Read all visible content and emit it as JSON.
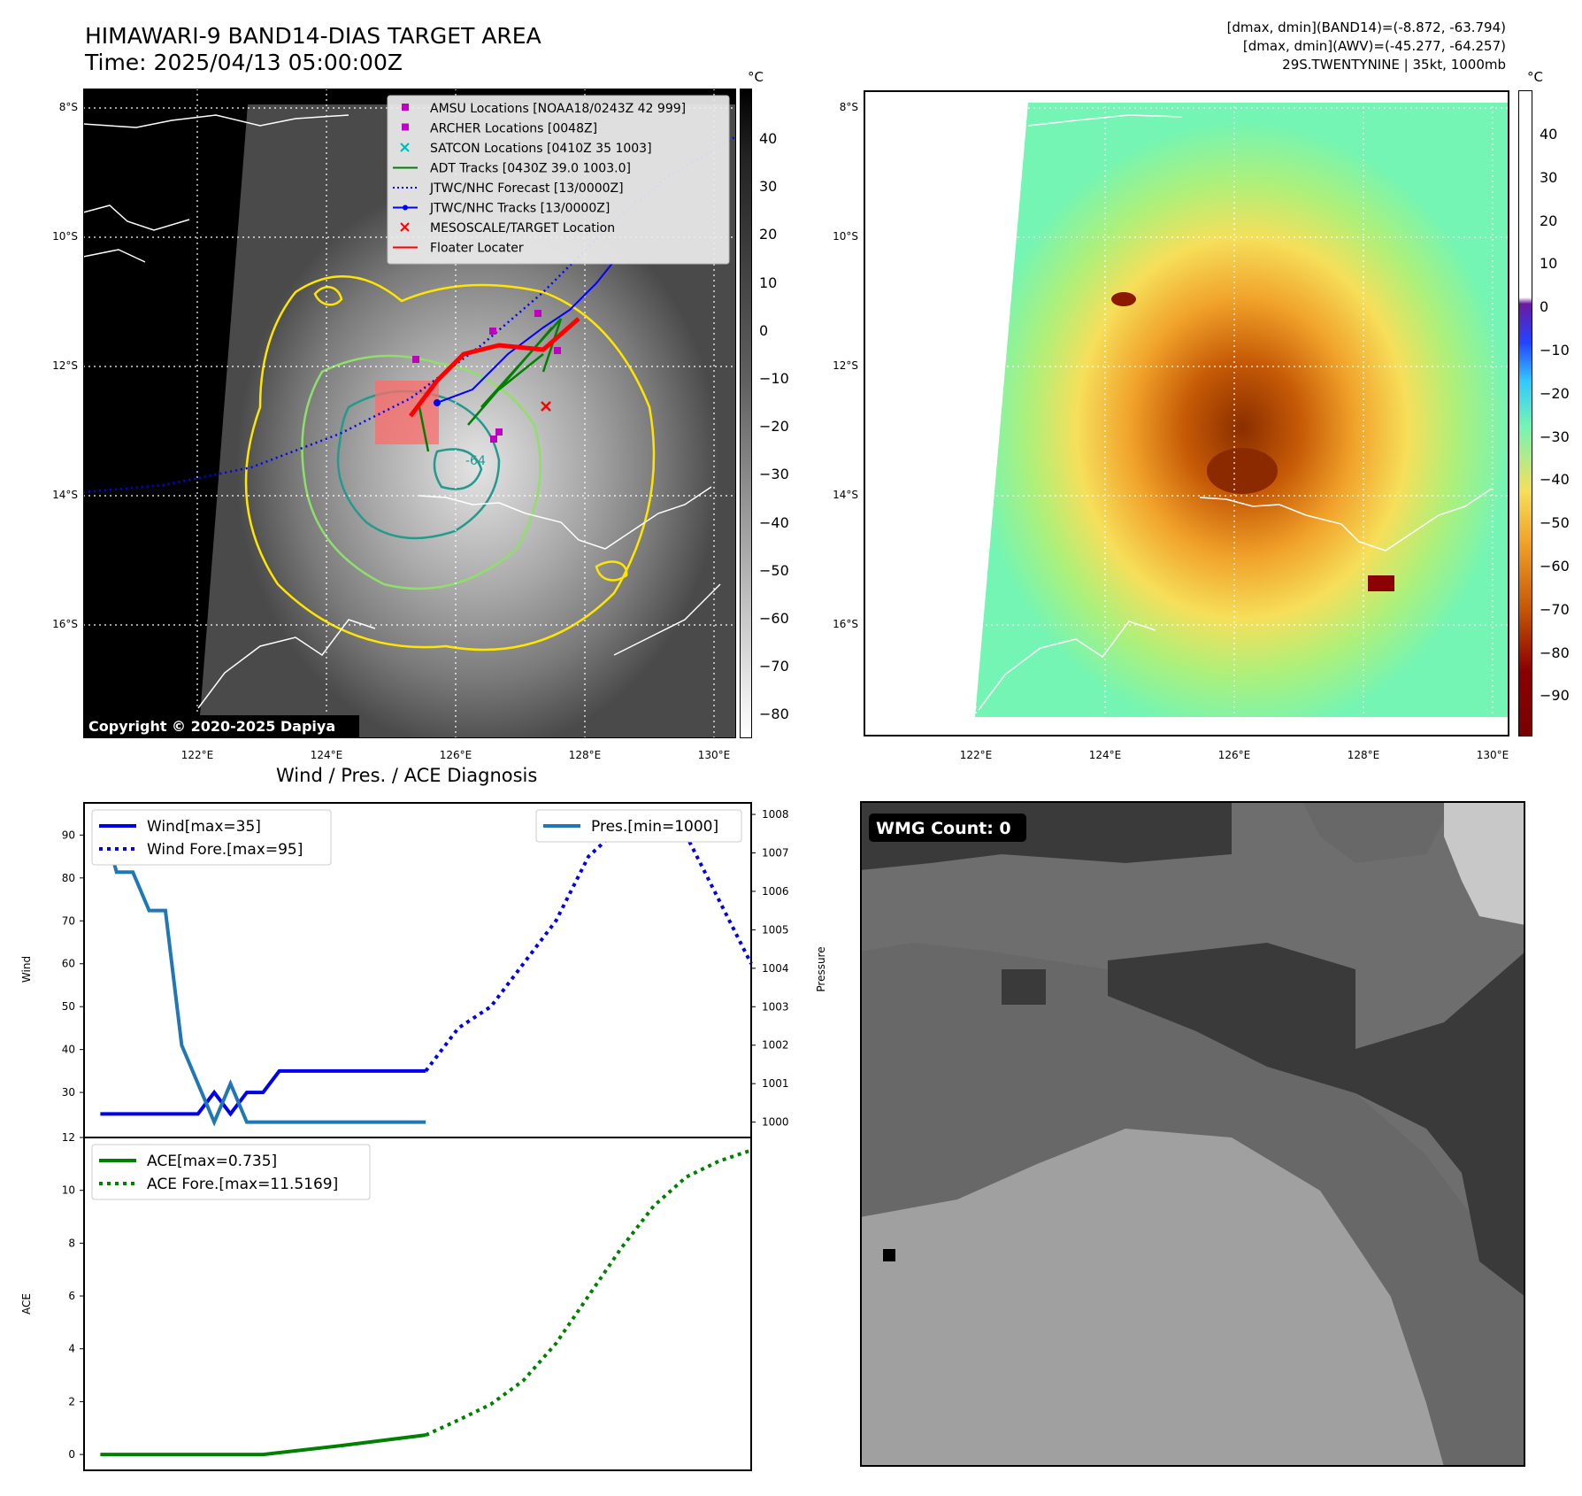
{
  "header": {
    "title": "HIMAWARI-9 BAND14-DIAS TARGET AREA",
    "time": "Time: 2025/04/13 05:00:00Z",
    "info_line1": "[dmax, dmin](BAND14)=(-8.872, -63.794)",
    "info_line2": "[dmax, dmin](AWV)=(-45.277, -64.257)",
    "info_line3": "29S.TWENTYNINE | 35kt, 1000mb"
  },
  "map_panel": {
    "unit": "°C",
    "lat_labels": [
      "8°S",
      "10°S",
      "12°S",
      "14°S",
      "16°S"
    ],
    "lon_labels": [
      "122°E",
      "124°E",
      "126°E",
      "128°E",
      "130°E"
    ],
    "copyright": "Copyright © 2020-2025 Dapiya",
    "contour_label": "-64",
    "colorbar_ticks": [
      "40",
      "30",
      "20",
      "10",
      "0",
      "−10",
      "−20",
      "−30",
      "−40",
      "−50",
      "−60",
      "−70",
      "−80"
    ],
    "legend": [
      {
        "label": "AMSU Locations [NOAA18/0243Z 42 999]",
        "color": "#c000c0",
        "marker": "square"
      },
      {
        "label": "ARCHER Locations [0048Z]",
        "color": "#c000c0",
        "marker": "square"
      },
      {
        "label": "SATCON Locations [0410Z 35 1003]",
        "color": "#00b8b8",
        "marker": "x"
      },
      {
        "label": "ADT Tracks [0430Z 39.0 1003.0]",
        "color": "#008000",
        "marker": "line"
      },
      {
        "label": "JTWC/NHC Forecast [13/0000Z]",
        "color": "#0000ff",
        "marker": "dotted"
      },
      {
        "label": "JTWC/NHC Tracks [13/0000Z]",
        "color": "#0000ff",
        "marker": "line-dot"
      },
      {
        "label": "MESOSCALE/TARGET Location",
        "color": "#ff0000",
        "marker": "x"
      },
      {
        "label": "Floater Locater",
        "color": "#ff0000",
        "marker": "line"
      }
    ]
  },
  "awv_panel": {
    "unit": "°C",
    "lat_labels": [
      "8°S",
      "10°S",
      "12°S",
      "14°S",
      "16°S"
    ],
    "lon_labels": [
      "122°E",
      "124°E",
      "126°E",
      "128°E",
      "130°E"
    ],
    "colorbar_ticks": [
      "40",
      "30",
      "20",
      "10",
      "0",
      "−10",
      "−20",
      "−30",
      "−40",
      "−50",
      "−60",
      "−70",
      "−80",
      "−90"
    ]
  },
  "diagnosis_title": "Wind / Pres. / ACE Diagnosis",
  "wmg": {
    "label": "WMG Count: 0"
  },
  "colors": {
    "wind": "#0000ee",
    "pres": "#1f77b4",
    "ace": "#008000"
  },
  "chart_data": [
    {
      "type": "line",
      "title": "Wind / Pres. / ACE Diagnosis",
      "ylabel": "Wind",
      "y2label": "Pressure",
      "ylim": [
        19.5,
        97.5
      ],
      "y2lim": [
        999.6,
        1008.3
      ],
      "xlim": [
        -1,
        40
      ],
      "yticks": [
        30,
        40,
        50,
        60,
        70,
        80,
        90
      ],
      "y2ticks": [
        1000,
        1001,
        1002,
        1003,
        1004,
        1005,
        1006,
        1007,
        1008
      ],
      "series": [
        {
          "name": "Wind[max=35]",
          "style": "solid",
          "axis": "left",
          "x": [
            0,
            1,
            2,
            3,
            4,
            5,
            6,
            7,
            8,
            9,
            10,
            11,
            12,
            13,
            14,
            15,
            16,
            17,
            18,
            19,
            20
          ],
          "values": [
            25,
            25,
            25,
            25,
            25,
            25,
            25,
            30,
            25,
            30,
            30,
            35,
            35,
            35,
            35,
            35,
            35,
            35,
            35,
            35,
            35
          ]
        },
        {
          "name": "Wind Fore.[max=95]",
          "style": "dotted",
          "axis": "left",
          "x": [
            20,
            22,
            24,
            26,
            28,
            30,
            32,
            34,
            36,
            38,
            40
          ],
          "values": [
            35,
            45,
            50,
            60,
            70,
            85,
            92,
            95,
            90,
            75,
            60
          ]
        },
        {
          "name": "Pres.[min=1000]",
          "style": "solid",
          "axis": "right",
          "x": [
            0,
            1,
            2,
            3,
            4,
            5,
            6,
            7,
            8,
            9,
            10,
            11,
            12,
            13,
            14,
            15,
            16,
            17,
            18,
            19,
            20
          ],
          "values": [
            1008,
            1006.5,
            1006.5,
            1005.5,
            1005.5,
            1002,
            1001,
            1000,
            1001,
            1000,
            1000,
            1000,
            1000,
            1000,
            1000,
            1000,
            1000,
            1000,
            1000,
            1000,
            1000
          ]
        }
      ]
    },
    {
      "type": "line",
      "ylabel": "ACE",
      "ylim": [
        -0.6,
        12
      ],
      "xlim": [
        -1,
        40
      ],
      "yticks": [
        0,
        2,
        4,
        6,
        8,
        10,
        12
      ],
      "series": [
        {
          "name": "ACE[max=0.735]",
          "style": "solid",
          "x": [
            0,
            5,
            10,
            15,
            20
          ],
          "values": [
            0,
            0,
            0,
            0.35,
            0.735
          ]
        },
        {
          "name": "ACE Fore.[max=11.5169]",
          "style": "dotted",
          "x": [
            20,
            22,
            24,
            26,
            28,
            30,
            32,
            34,
            36,
            38,
            40
          ],
          "values": [
            0.735,
            1.3,
            1.9,
            2.8,
            4.2,
            6.0,
            7.8,
            9.4,
            10.5,
            11.1,
            11.5169
          ]
        }
      ]
    }
  ]
}
